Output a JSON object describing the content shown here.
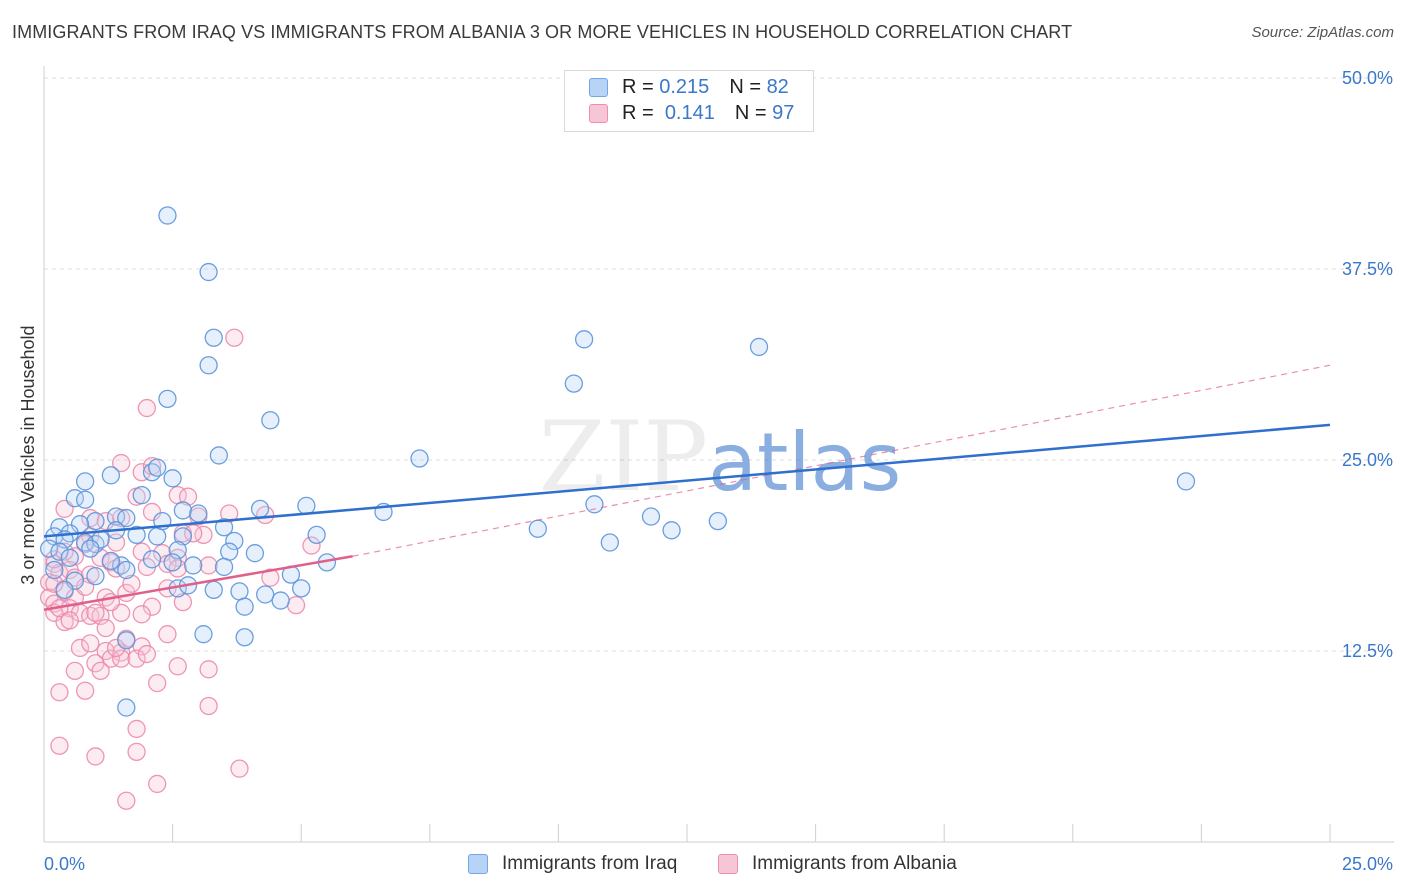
{
  "title": "IMMIGRANTS FROM IRAQ VS IMMIGRANTS FROM ALBANIA 3 OR MORE VEHICLES IN HOUSEHOLD CORRELATION CHART",
  "source": "Source: ZipAtlas.com",
  "watermark": "ZIPatlas",
  "legend": {
    "r_label": "R =",
    "n_label": "N =",
    "items": [
      {
        "r": "0.215",
        "n": "82",
        "color": "#6fa8e6",
        "fill": "#b7d3f5"
      },
      {
        "r": "0.141",
        "n": "97",
        "color": "#ef8fb0",
        "fill": "#f7c6d6"
      }
    ]
  },
  "bottom_legend": [
    {
      "label": "Immigrants from Iraq"
    },
    {
      "label": "Immigrants from Albania"
    }
  ],
  "colors": {
    "iraq_stroke": "#5b95da",
    "iraq_line": "#2f6fce",
    "albania_stroke": "#ec8bab",
    "albania_line": "#e0608c",
    "tick_label": "#3a78c9",
    "grid": "#dcdcdc"
  },
  "chart_data": {
    "type": "scatter",
    "title": "IMMIGRANTS FROM IRAQ VS IMMIGRANTS FROM ALBANIA 3 OR MORE VEHICLES IN HOUSEHOLD CORRELATION CHART",
    "xlabel": "",
    "ylabel": "3 or more Vehicles in Household",
    "xlim": [
      0,
      25
    ],
    "ylim": [
      0,
      50
    ],
    "x_tick_labels": [
      "0.0%",
      "25.0%"
    ],
    "y_ticks": [
      12.5,
      25.0,
      37.5,
      50.0
    ],
    "y_tick_labels": [
      "12.5%",
      "25.0%",
      "37.5%",
      "50.0%"
    ],
    "series": [
      {
        "name": "Immigrants from Iraq",
        "r": 0.215,
        "n": 82,
        "trend": {
          "x0": 0,
          "y0": 20.0,
          "x1": 25,
          "y1": 27.3,
          "dashed_extension": false
        },
        "points": [
          [
            2.4,
            41.0
          ],
          [
            3.2,
            37.3
          ],
          [
            3.3,
            33.0
          ],
          [
            3.2,
            31.2
          ],
          [
            2.4,
            29.0
          ],
          [
            4.4,
            27.6
          ],
          [
            3.4,
            25.3
          ],
          [
            2.1,
            24.2
          ],
          [
            2.2,
            24.5
          ],
          [
            2.5,
            23.8
          ],
          [
            1.3,
            24.0
          ],
          [
            0.8,
            23.6
          ],
          [
            0.6,
            22.5
          ],
          [
            0.8,
            22.4
          ],
          [
            1.9,
            22.7
          ],
          [
            2.7,
            21.7
          ],
          [
            3.0,
            21.5
          ],
          [
            4.2,
            21.8
          ],
          [
            5.1,
            22.0
          ],
          [
            6.6,
            21.6
          ],
          [
            1.4,
            21.3
          ],
          [
            1.6,
            21.2
          ],
          [
            1.0,
            21.0
          ],
          [
            0.7,
            20.8
          ],
          [
            0.3,
            20.6
          ],
          [
            0.5,
            20.2
          ],
          [
            0.2,
            20.0
          ],
          [
            0.4,
            19.8
          ],
          [
            0.8,
            19.6
          ],
          [
            1.0,
            19.5
          ],
          [
            1.1,
            19.8
          ],
          [
            1.4,
            20.4
          ],
          [
            1.8,
            20.1
          ],
          [
            2.2,
            20.0
          ],
          [
            2.7,
            20.0
          ],
          [
            3.5,
            20.6
          ],
          [
            3.7,
            19.7
          ],
          [
            0.1,
            19.2
          ],
          [
            0.3,
            19.0
          ],
          [
            0.5,
            18.6
          ],
          [
            2.6,
            19.1
          ],
          [
            2.1,
            18.5
          ],
          [
            2.5,
            18.3
          ],
          [
            2.9,
            18.1
          ],
          [
            3.6,
            19.0
          ],
          [
            4.1,
            18.9
          ],
          [
            5.3,
            20.1
          ],
          [
            1.5,
            18.1
          ],
          [
            1.6,
            17.8
          ],
          [
            3.5,
            18.0
          ],
          [
            4.8,
            17.5
          ],
          [
            5.5,
            18.3
          ],
          [
            2.6,
            16.6
          ],
          [
            2.8,
            16.8
          ],
          [
            3.3,
            16.5
          ],
          [
            3.8,
            16.4
          ],
          [
            4.3,
            16.2
          ],
          [
            4.6,
            15.8
          ],
          [
            5.0,
            16.6
          ],
          [
            3.1,
            13.6
          ],
          [
            3.9,
            15.4
          ],
          [
            3.9,
            13.4
          ],
          [
            1.6,
            13.2
          ],
          [
            1.6,
            8.8
          ],
          [
            7.3,
            25.1
          ],
          [
            10.3,
            30.0
          ],
          [
            10.5,
            32.9
          ],
          [
            13.9,
            32.4
          ],
          [
            9.6,
            20.5
          ],
          [
            10.7,
            22.1
          ],
          [
            11.0,
            19.6
          ],
          [
            11.8,
            21.3
          ],
          [
            12.2,
            20.4
          ],
          [
            13.1,
            21.0
          ],
          [
            22.2,
            23.6
          ],
          [
            0.2,
            17.8
          ],
          [
            0.6,
            17.1
          ],
          [
            1.0,
            17.4
          ],
          [
            2.3,
            21.0
          ],
          [
            0.4,
            16.5
          ],
          [
            0.9,
            19.2
          ],
          [
            1.3,
            18.4
          ]
        ]
      },
      {
        "name": "Immigrants from Albania",
        "r": 0.141,
        "n": 97,
        "trend": {
          "x0": 0,
          "y0": 15.2,
          "x1": 6.0,
          "y1": 18.7,
          "dashed_to_x": 25,
          "dashed_to_y": 31.2
        },
        "points": [
          [
            3.7,
            33.0
          ],
          [
            2.0,
            28.4
          ],
          [
            1.9,
            24.2
          ],
          [
            1.5,
            24.8
          ],
          [
            2.1,
            24.6
          ],
          [
            2.6,
            22.7
          ],
          [
            2.8,
            22.6
          ],
          [
            1.8,
            22.6
          ],
          [
            2.1,
            21.6
          ],
          [
            0.4,
            21.8
          ],
          [
            0.9,
            21.2
          ],
          [
            1.2,
            21.0
          ],
          [
            1.5,
            21.2
          ],
          [
            3.0,
            21.3
          ],
          [
            3.6,
            21.5
          ],
          [
            4.3,
            21.4
          ],
          [
            2.7,
            20.2
          ],
          [
            3.1,
            20.1
          ],
          [
            5.2,
            19.4
          ],
          [
            0.9,
            20.0
          ],
          [
            0.8,
            19.5
          ],
          [
            1.4,
            19.6
          ],
          [
            1.9,
            19.0
          ],
          [
            2.3,
            18.9
          ],
          [
            2.6,
            18.6
          ],
          [
            0.6,
            18.7
          ],
          [
            1.1,
            18.6
          ],
          [
            1.3,
            18.3
          ],
          [
            2.0,
            18.0
          ],
          [
            2.4,
            18.2
          ],
          [
            3.2,
            18.1
          ],
          [
            0.2,
            18.2
          ],
          [
            0.3,
            17.6
          ],
          [
            0.5,
            17.8
          ],
          [
            0.6,
            17.3
          ],
          [
            0.9,
            17.5
          ],
          [
            1.4,
            17.9
          ],
          [
            2.6,
            17.9
          ],
          [
            0.1,
            17.0
          ],
          [
            0.4,
            16.4
          ],
          [
            0.6,
            16.0
          ],
          [
            1.2,
            16.0
          ],
          [
            1.6,
            16.3
          ],
          [
            2.4,
            16.6
          ],
          [
            0.1,
            16.0
          ],
          [
            0.2,
            15.6
          ],
          [
            0.5,
            15.3
          ],
          [
            0.7,
            15.0
          ],
          [
            0.9,
            14.8
          ],
          [
            1.1,
            14.8
          ],
          [
            1.5,
            15.0
          ],
          [
            2.1,
            15.4
          ],
          [
            2.7,
            15.7
          ],
          [
            4.4,
            17.3
          ],
          [
            4.9,
            15.5
          ],
          [
            0.2,
            15.0
          ],
          [
            0.4,
            14.4
          ],
          [
            1.2,
            14.0
          ],
          [
            1.6,
            13.3
          ],
          [
            2.4,
            13.6
          ],
          [
            1.2,
            12.5
          ],
          [
            1.5,
            12.4
          ],
          [
            1.9,
            12.8
          ],
          [
            0.7,
            12.7
          ],
          [
            1.3,
            12.0
          ],
          [
            1.5,
            12.0
          ],
          [
            1.0,
            11.7
          ],
          [
            1.8,
            12.0
          ],
          [
            1.1,
            11.2
          ],
          [
            2.6,
            11.5
          ],
          [
            3.2,
            11.3
          ],
          [
            0.6,
            11.2
          ],
          [
            2.2,
            10.4
          ],
          [
            0.3,
            9.8
          ],
          [
            0.8,
            9.9
          ],
          [
            3.2,
            8.9
          ],
          [
            1.8,
            7.4
          ],
          [
            0.3,
            6.3
          ],
          [
            1.8,
            5.9
          ],
          [
            1.0,
            5.6
          ],
          [
            3.8,
            4.8
          ],
          [
            2.2,
            3.8
          ],
          [
            1.6,
            2.7
          ],
          [
            0.2,
            18.5
          ],
          [
            0.3,
            15.3
          ],
          [
            0.5,
            14.5
          ],
          [
            0.9,
            13.0
          ],
          [
            1.4,
            12.7
          ],
          [
            2.0,
            12.3
          ],
          [
            0.8,
            16.7
          ],
          [
            1.7,
            16.9
          ],
          [
            0.4,
            19.0
          ],
          [
            2.9,
            20.2
          ],
          [
            1.0,
            15.0
          ],
          [
            1.9,
            14.9
          ],
          [
            0.2,
            16.9
          ],
          [
            1.3,
            15.7
          ]
        ]
      }
    ]
  }
}
